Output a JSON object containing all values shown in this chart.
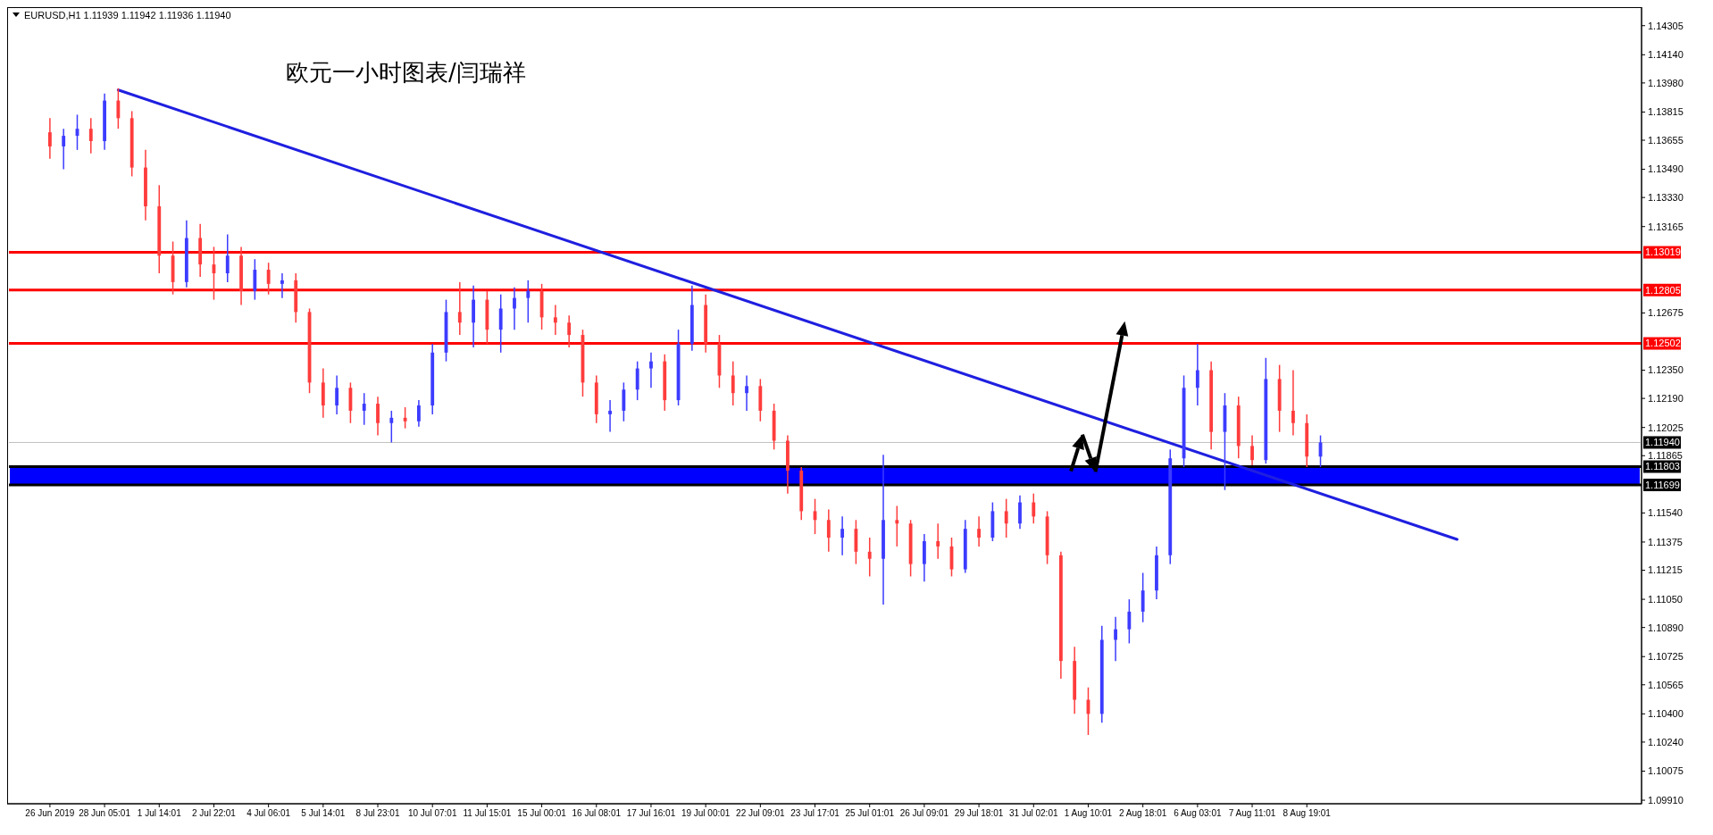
{
  "chart_data": {
    "type": "candlestick",
    "title": "欧元一小时图表/闫瑞祥",
    "annotations": [
      "EURUSD,H1  1.11939 1.11942 1.11936 1.11940"
    ],
    "categories": [
      "26 Jun 2019",
      null,
      null,
      null,
      "28 Jun 05:01",
      null,
      null,
      null,
      "1 Jul 14:01",
      null,
      null,
      null,
      "2 Jul 22:01",
      null,
      null,
      null,
      "4 Jul 06:01",
      null,
      null,
      null,
      "5 Jul 14:01",
      null,
      null,
      null,
      "8 Jul 23:01",
      null,
      null,
      null,
      "10 Jul 07:01",
      null,
      null,
      null,
      "11 Jul 15:01",
      null,
      null,
      null,
      "15 Jul 00:01",
      null,
      null,
      null,
      "16 Jul 08:01",
      null,
      null,
      null,
      "17 Jul 16:01",
      null,
      null,
      null,
      "19 Jul 00:01",
      null,
      null,
      null,
      "22 Jul 09:01",
      null,
      null,
      null,
      "23 Jul 17:01",
      null,
      null,
      null,
      "25 Jul 01:01",
      null,
      null,
      null,
      "26 Jul 09:01",
      null,
      null,
      null,
      "29 Jul 18:01",
      null,
      null,
      null,
      "31 Jul 02:01",
      null,
      null,
      null,
      "1 Aug 10:01",
      null,
      null,
      null,
      "2 Aug 18:01",
      null,
      null,
      null,
      "6 Aug 03:01",
      null,
      null,
      null,
      "7 Aug 11:01",
      null,
      null,
      null,
      "8 Aug 19:01",
      null,
      null,
      null,
      null,
      null,
      null,
      null,
      null,
      null,
      null,
      null,
      null,
      null,
      null,
      null,
      null,
      null,
      null,
      null,
      null,
      null,
      null,
      null,
      null
    ],
    "ohlc": [
      [
        1.137,
        1.1378,
        1.1355,
        1.1362
      ],
      [
        1.1362,
        1.1372,
        1.1349,
        1.1368
      ],
      [
        1.1368,
        1.138,
        1.136,
        1.1372
      ],
      [
        1.1372,
        1.1378,
        1.1358,
        1.1365
      ],
      [
        1.1365,
        1.1392,
        1.136,
        1.1388
      ],
      [
        1.1388,
        1.1395,
        1.1372,
        1.1378
      ],
      [
        1.1378,
        1.1382,
        1.1345,
        1.135
      ],
      [
        1.135,
        1.136,
        1.132,
        1.1328
      ],
      [
        1.1328,
        1.134,
        1.129,
        1.13
      ],
      [
        1.13,
        1.1308,
        1.1278,
        1.1285
      ],
      [
        1.1285,
        1.132,
        1.1282,
        1.131
      ],
      [
        1.131,
        1.1318,
        1.1288,
        1.1295
      ],
      [
        1.1295,
        1.1305,
        1.1275,
        1.129
      ],
      [
        1.129,
        1.1312,
        1.1285,
        1.13
      ],
      [
        1.13,
        1.1305,
        1.1272,
        1.128
      ],
      [
        1.128,
        1.1298,
        1.1275,
        1.1292
      ],
      [
        1.1292,
        1.1296,
        1.1278,
        1.1284
      ],
      [
        1.1284,
        1.129,
        1.1276,
        1.1286
      ],
      [
        1.1286,
        1.129,
        1.1262,
        1.1268
      ],
      [
        1.1268,
        1.127,
        1.1222,
        1.1228
      ],
      [
        1.1228,
        1.1236,
        1.1208,
        1.1215
      ],
      [
        1.1215,
        1.1232,
        1.121,
        1.1225
      ],
      [
        1.1225,
        1.1228,
        1.1205,
        1.1212
      ],
      [
        1.1212,
        1.1222,
        1.1204,
        1.1216
      ],
      [
        1.1216,
        1.122,
        1.1198,
        1.1205
      ],
      [
        1.1205,
        1.1212,
        1.1194,
        1.1208
      ],
      [
        1.1208,
        1.1214,
        1.1202,
        1.1206
      ],
      [
        1.1206,
        1.1218,
        1.1203,
        1.1215
      ],
      [
        1.1215,
        1.125,
        1.121,
        1.1245
      ],
      [
        1.1245,
        1.1275,
        1.124,
        1.1268
      ],
      [
        1.1268,
        1.1285,
        1.1255,
        1.1262
      ],
      [
        1.1262,
        1.1283,
        1.1248,
        1.1275
      ],
      [
        1.1275,
        1.128,
        1.125,
        1.1258
      ],
      [
        1.1258,
        1.1278,
        1.1245,
        1.127
      ],
      [
        1.127,
        1.1282,
        1.1258,
        1.1276
      ],
      [
        1.1276,
        1.1286,
        1.1262,
        1.128
      ],
      [
        1.128,
        1.1284,
        1.1258,
        1.1265
      ],
      [
        1.1265,
        1.1272,
        1.1255,
        1.1262
      ],
      [
        1.1262,
        1.1266,
        1.1248,
        1.1255
      ],
      [
        1.1255,
        1.1258,
        1.122,
        1.1228
      ],
      [
        1.1228,
        1.1232,
        1.1205,
        1.121
      ],
      [
        1.121,
        1.1218,
        1.12,
        1.1212
      ],
      [
        1.1212,
        1.1228,
        1.1206,
        1.1224
      ],
      [
        1.1224,
        1.124,
        1.1218,
        1.1236
      ],
      [
        1.1236,
        1.1245,
        1.1225,
        1.124
      ],
      [
        1.124,
        1.1244,
        1.1212,
        1.1218
      ],
      [
        1.1218,
        1.1258,
        1.1215,
        1.125
      ],
      [
        1.125,
        1.1283,
        1.1246,
        1.1272
      ],
      [
        1.1272,
        1.1278,
        1.1245,
        1.125
      ],
      [
        1.125,
        1.1255,
        1.1225,
        1.1232
      ],
      [
        1.1232,
        1.124,
        1.1215,
        1.1222
      ],
      [
        1.1222,
        1.1232,
        1.1212,
        1.1226
      ],
      [
        1.1226,
        1.123,
        1.1206,
        1.1212
      ],
      [
        1.1212,
        1.1216,
        1.119,
        1.1195
      ],
      [
        1.1195,
        1.1198,
        1.1165,
        1.1178
      ],
      [
        1.1178,
        1.118,
        1.115,
        1.1155
      ],
      [
        1.1155,
        1.1162,
        1.1142,
        1.115
      ],
      [
        1.115,
        1.1156,
        1.1132,
        1.114
      ],
      [
        1.114,
        1.1152,
        1.113,
        1.1145
      ],
      [
        1.1145,
        1.115,
        1.1125,
        1.1132
      ],
      [
        1.1132,
        1.114,
        1.1118,
        1.1128
      ],
      [
        1.1128,
        1.1187,
        1.1102,
        1.115
      ],
      [
        1.115,
        1.1158,
        1.1135,
        1.1148
      ],
      [
        1.1148,
        1.115,
        1.1118,
        1.1125
      ],
      [
        1.1125,
        1.1142,
        1.1115,
        1.1138
      ],
      [
        1.1138,
        1.1148,
        1.1128,
        1.1135
      ],
      [
        1.1135,
        1.114,
        1.1118,
        1.1122
      ],
      [
        1.1122,
        1.115,
        1.112,
        1.1145
      ],
      [
        1.1145,
        1.1152,
        1.1135,
        1.114
      ],
      [
        1.114,
        1.116,
        1.1138,
        1.1155
      ],
      [
        1.1155,
        1.1162,
        1.114,
        1.1148
      ],
      [
        1.1148,
        1.1164,
        1.1145,
        1.116
      ],
      [
        1.116,
        1.1165,
        1.1148,
        1.1152
      ],
      [
        1.1152,
        1.1155,
        1.1125,
        1.113
      ],
      [
        1.113,
        1.1132,
        1.106,
        1.107
      ],
      [
        1.107,
        1.1078,
        1.104,
        1.1048
      ],
      [
        1.1048,
        1.1055,
        1.1028,
        1.104
      ],
      [
        1.104,
        1.109,
        1.1035,
        1.1082
      ],
      [
        1.1082,
        1.1095,
        1.107,
        1.1088
      ],
      [
        1.1088,
        1.1105,
        1.108,
        1.1098
      ],
      [
        1.1098,
        1.112,
        1.1092,
        1.111
      ],
      [
        1.111,
        1.1135,
        1.1105,
        1.113
      ],
      [
        1.113,
        1.119,
        1.1125,
        1.1185
      ],
      [
        1.1185,
        1.1232,
        1.118,
        1.1225
      ],
      [
        1.1225,
        1.125,
        1.1215,
        1.1235
      ],
      [
        1.1235,
        1.124,
        1.119,
        1.12
      ],
      [
        1.12,
        1.1222,
        1.1167,
        1.1215
      ],
      [
        1.1215,
        1.122,
        1.1185,
        1.1192
      ],
      [
        1.1192,
        1.1198,
        1.1181,
        1.1184
      ],
      [
        1.1184,
        1.1242,
        1.1182,
        1.123
      ],
      [
        1.123,
        1.1238,
        1.12,
        1.1212
      ],
      [
        1.1212,
        1.1235,
        1.1198,
        1.1205
      ],
      [
        1.1205,
        1.121,
        1.118,
        1.1186
      ],
      [
        1.1186,
        1.1198,
        1.118,
        1.1194
      ],
      null,
      null,
      null,
      null,
      null,
      null,
      null,
      null,
      null,
      null,
      null,
      null,
      null,
      null,
      null,
      null,
      null,
      null,
      null,
      null,
      null,
      null,
      null
    ],
    "colors": [
      "#ff3c3c",
      "#3c3cff",
      "#3c3cff",
      "#ff3c3c",
      "#3c3cff",
      "#ff3c3c",
      "#ff3c3c",
      "#ff3c3c",
      "#ff3c3c",
      "#ff3c3c",
      "#3c3cff",
      "#ff3c3c",
      "#ff3c3c",
      "#3c3cff",
      "#ff3c3c",
      "#3c3cff",
      "#ff3c3c",
      "#3c3cff",
      "#ff3c3c",
      "#ff3c3c",
      "#ff3c3c",
      "#3c3cff",
      "#ff3c3c",
      "#3c3cff",
      "#ff3c3c",
      "#3c3cff",
      "#ff3c3c",
      "#3c3cff",
      "#3c3cff",
      "#3c3cff",
      "#ff3c3c",
      "#3c3cff",
      "#ff3c3c",
      "#3c3cff",
      "#3c3cff",
      "#3c3cff",
      "#ff3c3c",
      "#ff3c3c",
      "#ff3c3c",
      "#ff3c3c",
      "#ff3c3c",
      "#3c3cff",
      "#3c3cff",
      "#3c3cff",
      "#3c3cff",
      "#ff3c3c",
      "#3c3cff",
      "#3c3cff",
      "#ff3c3c",
      "#ff3c3c",
      "#ff3c3c",
      "#3c3cff",
      "#ff3c3c",
      "#ff3c3c",
      "#ff3c3c",
      "#ff3c3c",
      "#ff3c3c",
      "#ff3c3c",
      "#3c3cff",
      "#ff3c3c",
      "#ff3c3c",
      "#3c3cff",
      "#ff3c3c",
      "#ff3c3c",
      "#3c3cff",
      "#ff3c3c",
      "#ff3c3c",
      "#3c3cff",
      "#ff3c3c",
      "#3c3cff",
      "#ff3c3c",
      "#3c3cff",
      "#ff3c3c",
      "#ff3c3c",
      "#ff3c3c",
      "#ff3c3c",
      "#ff3c3c",
      "#3c3cff",
      "#3c3cff",
      "#3c3cff",
      "#3c3cff",
      "#3c3cff",
      "#3c3cff",
      "#3c3cff",
      "#3c3cff",
      "#ff3c3c",
      "#3c3cff",
      "#ff3c3c",
      "#ff3c3c",
      "#3c3cff",
      "#ff3c3c",
      "#ff3c3c",
      "#ff3c3c",
      "#3c3cff",
      null,
      null,
      null,
      null,
      null,
      null,
      null,
      null,
      null,
      null,
      null,
      null,
      null,
      null,
      null,
      null,
      null,
      null,
      null,
      null,
      null,
      null,
      null
    ],
    "series": [
      {
        "type": "line",
        "color": "#1f1fe0",
        "values": [
          null,
          null,
          null,
          null,
          null,
          1.1394,
          null,
          null,
          null,
          null,
          null,
          null,
          null,
          null,
          null,
          null,
          null,
          null,
          null,
          null,
          null,
          null,
          null,
          null,
          null,
          null,
          null,
          null,
          null,
          null,
          null,
          null,
          null,
          null,
          null,
          null,
          null,
          null,
          null,
          null,
          null,
          null,
          null,
          null,
          null,
          null,
          null,
          null,
          null,
          null,
          null,
          null,
          null,
          null,
          null,
          null,
          null,
          null,
          null,
          null,
          null,
          null,
          null,
          null,
          null,
          null,
          null,
          null,
          null,
          null,
          null,
          null,
          null,
          null,
          null,
          null,
          null,
          null,
          null,
          null,
          null,
          null,
          null,
          null,
          null,
          null,
          null,
          null,
          null,
          null,
          null,
          null,
          null,
          null,
          null,
          null,
          null,
          null,
          null,
          null,
          null,
          null,
          null,
          1.1139,
          null,
          null,
          null,
          null,
          null,
          null,
          null,
          null,
          null,
          null,
          null,
          null,
          null
        ]
      }
    ],
    "ylim": [
      1.0989,
      1.144
    ],
    "yticks": [
      1.14305,
      {
        "value": 1.1414,
        "label": "1.14140"
      },
      {
        "value": 1.1398,
        "label": "1.13980"
      },
      1.13815,
      1.13655,
      {
        "value": 1.1349,
        "label": "1.13490"
      },
      {
        "value": 1.1333,
        "label": "1.13330"
      },
      1.13165,
      1.12675,
      {
        "value": 1.1235,
        "label": "1.12350"
      },
      {
        "value": 1.1219,
        "label": "1.12190"
      },
      1.12025,
      1.11865,
      {
        "value": 1.1154,
        "label": "1.11540"
      },
      1.11375,
      1.11215,
      {
        "value": 1.1105,
        "label": "1.11050"
      },
      {
        "value": 1.1089,
        "label": "1.10890"
      },
      1.10725,
      1.10565,
      {
        "value": 1.104,
        "label": "1.10400"
      },
      {
        "value": 1.1024,
        "label": "1.10240"
      },
      1.10075,
      {
        "value": 1.0991,
        "label": "1.09910"
      }
    ],
    "bands": [
      {
        "axis": "y",
        "from": 1.11699,
        "to": 1.11803,
        "color": "#0000ff"
      }
    ],
    "ref_lines": [
      {
        "axis": "y",
        "value": 1.13019,
        "label": "1.13019",
        "color": "#ff0000"
      },
      {
        "axis": "y",
        "value": 1.12805,
        "label": "1.12805",
        "color": "#ff0000"
      },
      {
        "axis": "y",
        "value": 1.12502,
        "label": "1.12502",
        "color": "#ff0000"
      },
      {
        "axis": "y",
        "value": 1.1194,
        "label": "1.11940",
        "color": "#c0c0c0"
      },
      {
        "axis": "y",
        "value": 1.11803,
        "label": "1.11803",
        "color": "#000000"
      },
      {
        "axis": "y",
        "value": 1.11699,
        "label": "1.11699",
        "color": "#000000"
      }
    ]
  }
}
